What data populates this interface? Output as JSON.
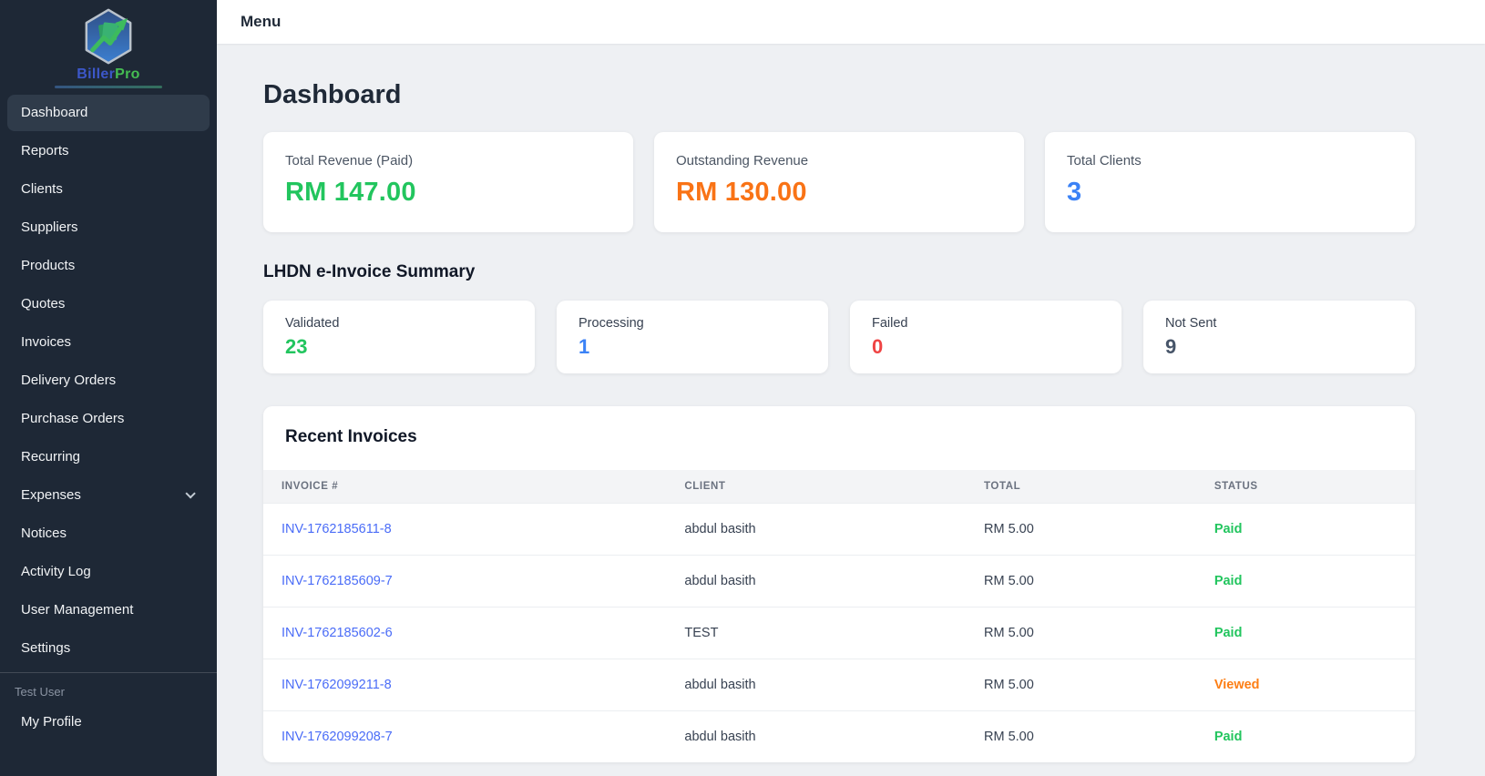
{
  "brand": {
    "name_primary": "Biller",
    "name_secondary": "Pro",
    "logo_icon": "shield-chart-icon",
    "colors": {
      "primary": "#3c57c9",
      "secondary": "#45bd52"
    }
  },
  "topbar": {
    "menu_label": "Menu"
  },
  "sidebar": {
    "items": [
      {
        "label": "Dashboard",
        "active": true
      },
      {
        "label": "Reports"
      },
      {
        "label": "Clients"
      },
      {
        "label": "Suppliers"
      },
      {
        "label": "Products"
      },
      {
        "label": "Quotes"
      },
      {
        "label": "Invoices"
      },
      {
        "label": "Delivery Orders"
      },
      {
        "label": "Purchase Orders"
      },
      {
        "label": "Recurring"
      },
      {
        "label": "Expenses",
        "has_submenu": true,
        "submenu_icon": "chevron-down-icon"
      },
      {
        "label": "Notices"
      },
      {
        "label": "Activity Log"
      },
      {
        "label": "User Management"
      },
      {
        "label": "Settings"
      }
    ],
    "user_label": "Test User",
    "profile_label": "My Profile"
  },
  "page": {
    "title": "Dashboard"
  },
  "stats": [
    {
      "label": "Total Revenue (Paid)",
      "value": "RM 147.00",
      "color": "#22c55e"
    },
    {
      "label": "Outstanding Revenue",
      "value": "RM 130.00",
      "color": "#f97316"
    },
    {
      "label": "Total Clients",
      "value": "3",
      "color": "#3b82f6"
    }
  ],
  "lhdn": {
    "title": "LHDN e-Invoice Summary",
    "cards": [
      {
        "label": "Validated",
        "value": "23",
        "color": "#22c55e"
      },
      {
        "label": "Processing",
        "value": "1",
        "color": "#3b82f6"
      },
      {
        "label": "Failed",
        "value": "0",
        "color": "#ef4444"
      },
      {
        "label": "Not Sent",
        "value": "9",
        "color": "#475569"
      }
    ]
  },
  "invoices": {
    "title": "Recent Invoices",
    "columns": [
      "INVOICE #",
      "CLIENT",
      "TOTAL",
      "STATUS"
    ],
    "column_widths": [
      "35%",
      "26%",
      "20%",
      "19%"
    ],
    "rows": [
      {
        "invoice": "INV-1762185611-8",
        "client": "abdul basith",
        "total": "RM 5.00",
        "status": "Paid"
      },
      {
        "invoice": "INV-1762185609-7",
        "client": "abdul basith",
        "total": "RM 5.00",
        "status": "Paid"
      },
      {
        "invoice": "INV-1762185602-6",
        "client": "TEST",
        "total": "RM 5.00",
        "status": "Paid"
      },
      {
        "invoice": "INV-1762099211-8",
        "client": "abdul basith",
        "total": "RM 5.00",
        "status": "Viewed"
      },
      {
        "invoice": "INV-1762099208-7",
        "client": "abdul basith",
        "total": "RM 5.00",
        "status": "Paid"
      }
    ],
    "status_colors": {
      "Paid": "#22c55e",
      "Viewed": "#fd7e14"
    },
    "link_color": "#4a6cf7"
  }
}
